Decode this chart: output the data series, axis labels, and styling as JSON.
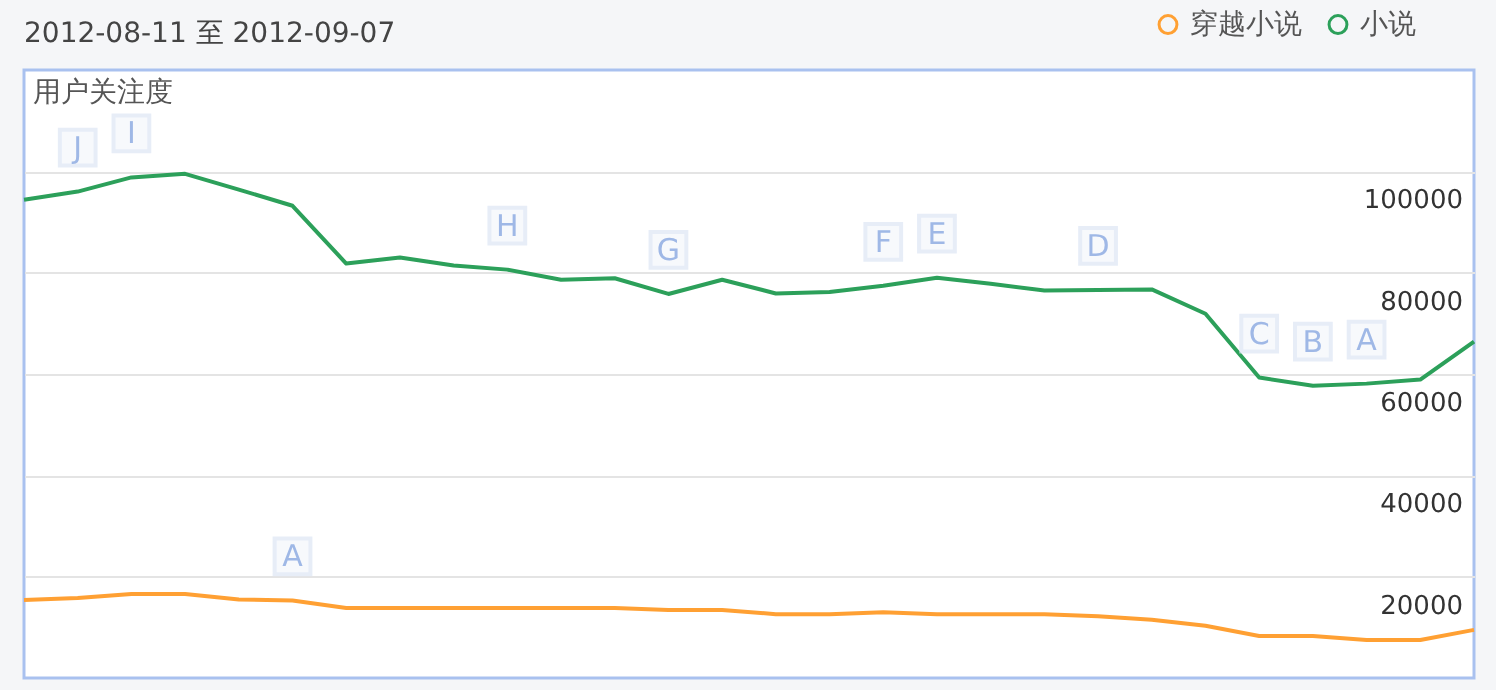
{
  "chart_data": {
    "type": "line",
    "title": "2012-08-11 至 2012-09-07",
    "ylabel": "用户关注度",
    "categories": [
      null,
      null,
      null,
      null,
      null,
      null,
      null,
      null,
      null,
      null,
      null,
      null,
      null,
      null,
      null,
      null,
      null,
      null,
      null,
      null,
      null,
      null,
      null,
      null,
      null,
      null,
      null,
      null
    ],
    "series": [
      {
        "name": "穿越小说",
        "color": "#ffa033",
        "values": [
          15400,
          15800,
          16600,
          16600,
          15500,
          15300,
          13800,
          13800,
          13800,
          13800,
          13800,
          13800,
          13400,
          13400,
          12600,
          12600,
          13000,
          12600,
          12600,
          12600,
          12200,
          11500,
          10300,
          8300,
          8300,
          7500,
          7500,
          9500
        ]
      },
      {
        "name": "小说",
        "color": "#2ca05a",
        "values": [
          94400,
          96000,
          98800,
          99500,
          96400,
          93200,
          81800,
          83000,
          81400,
          80600,
          78600,
          78900,
          75800,
          78600,
          75900,
          76200,
          77400,
          79000,
          77800,
          76500,
          76600,
          76700,
          71900,
          59300,
          57700,
          58100,
          58900,
          66400
        ]
      }
    ],
    "annotations": [
      {
        "text": "J",
        "y": 96000
      },
      {
        "text": "I",
        "y": 98800
      },
      {
        "text": "A",
        "y": 15300
      },
      {
        "text": "H",
        "y": 80600
      },
      {
        "text": "G",
        "y": 75800
      },
      {
        "text": "F",
        "y": 77400
      },
      {
        "text": "E",
        "y": 79000
      },
      {
        "text": "D",
        "y": 76600
      },
      {
        "text": "C",
        "y": 59300
      },
      {
        "text": "B",
        "y": 57700
      },
      {
        "text": "A",
        "y": 58100
      }
    ],
    "ylim": [
      0,
      120000
    ],
    "yticks": [
      20000,
      40000,
      60000,
      80000,
      100000
    ],
    "tick_labels": "y",
    "grid": "y",
    "legend": "top right",
    "marker": "none",
    "line_style": "solid"
  }
}
